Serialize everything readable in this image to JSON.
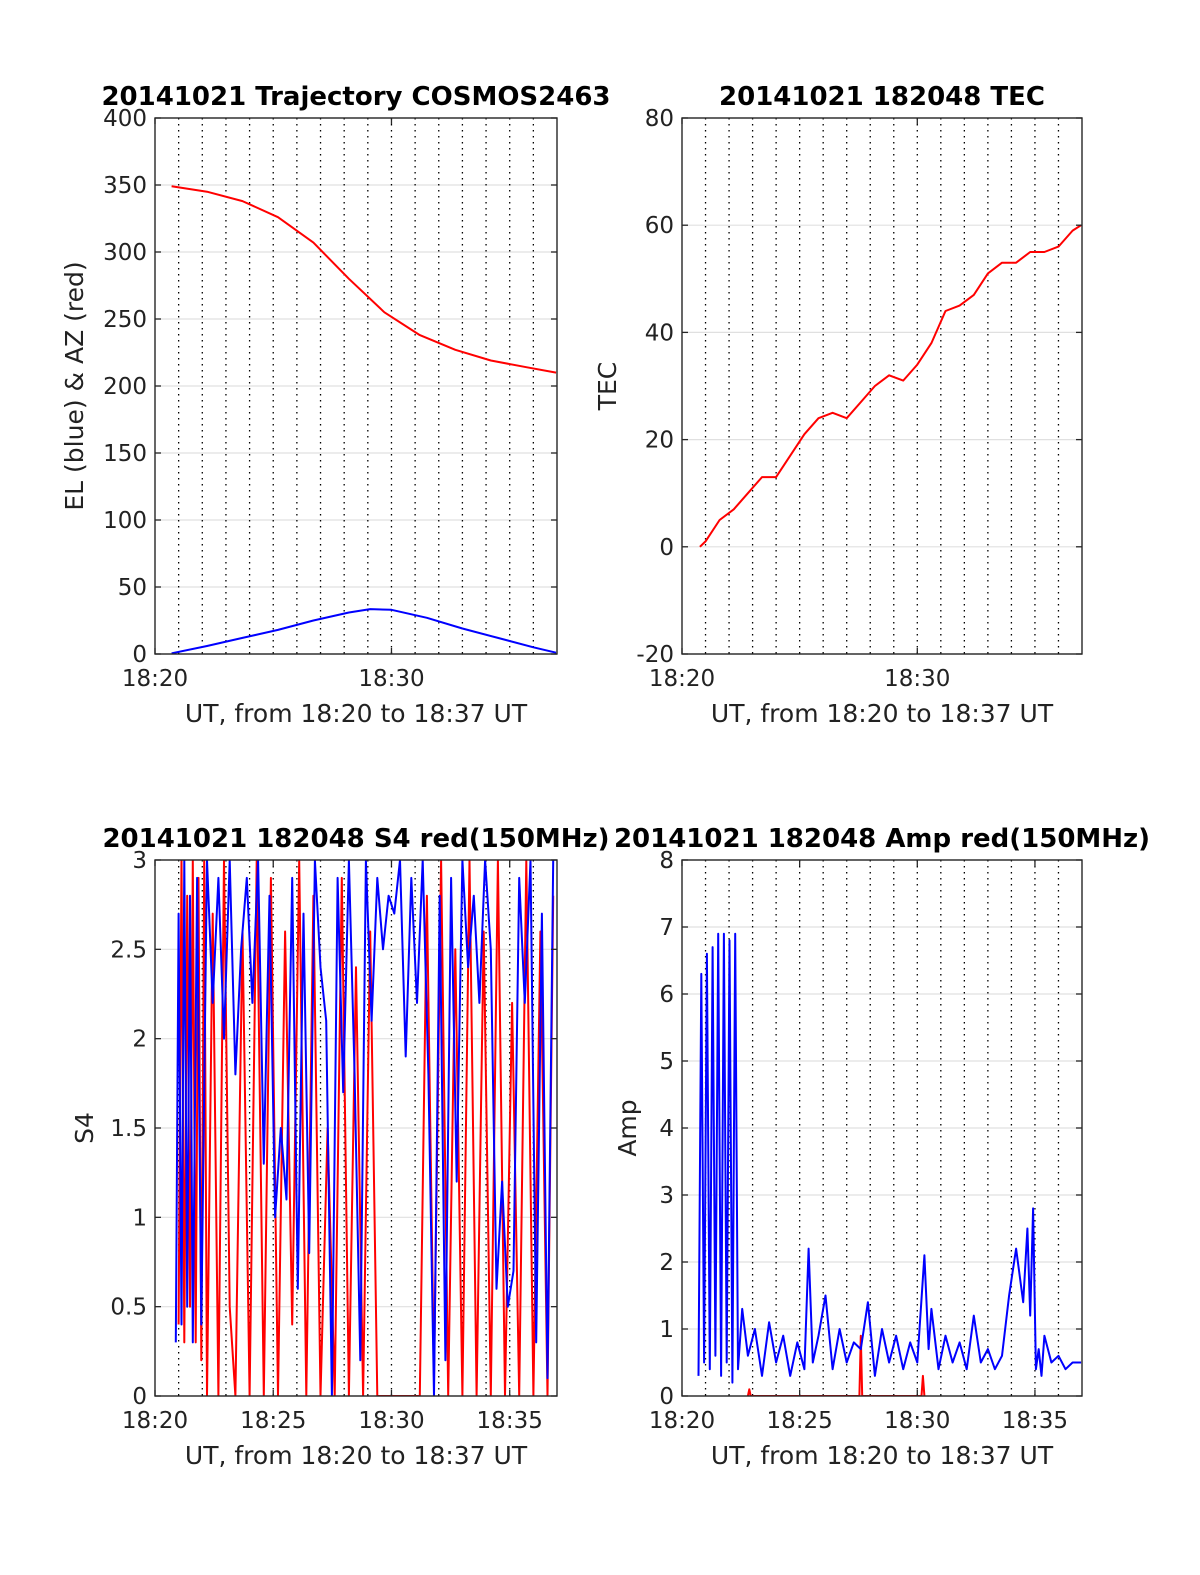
{
  "colors": {
    "el": "#0000ff",
    "az": "#ff0000",
    "tec": "#ff0000",
    "s4_red": "#ff0000",
    "s4_blue": "#0000ff",
    "amp_red": "#ff0000",
    "amp_blue": "#0000ff",
    "hgrid": "#e0e0e0",
    "vgrid": "#000000"
  },
  "chart_data": [
    {
      "type": "line",
      "title": "20141021 Trajectory COSMOS2463",
      "xlabel": "UT, from 18:20 to 18:37 UT",
      "ylabel": "EL (blue) & AZ (red)",
      "xlim": [
        18.333333,
        18.616667
      ],
      "ylim": [
        0,
        400
      ],
      "grid": true,
      "xticks": [
        {
          "value": 18.333333,
          "label": "18:20"
        },
        {
          "value": 18.5,
          "label": "18:30"
        }
      ],
      "yticks": [
        {
          "value": 0,
          "label": "0"
        },
        {
          "value": 50,
          "label": "50"
        },
        {
          "value": 100,
          "label": "100"
        },
        {
          "value": 150,
          "label": "150"
        },
        {
          "value": 200,
          "label": "200"
        },
        {
          "value": 250,
          "label": "250"
        },
        {
          "value": 300,
          "label": "300"
        },
        {
          "value": 350,
          "label": "350"
        },
        {
          "value": 400,
          "label": "400"
        }
      ],
      "series": [
        {
          "color": "#ff0000",
          "x": [
            18.345,
            18.37,
            18.395,
            18.42,
            18.445,
            18.47,
            18.495,
            18.52,
            18.545,
            18.57,
            18.595,
            18.616
          ],
          "values": [
            349,
            345,
            338,
            326,
            307,
            280,
            255,
            238,
            227,
            219,
            214,
            210
          ]
        },
        {
          "color": "#0000ff",
          "x": [
            18.345,
            18.37,
            18.395,
            18.42,
            18.445,
            18.47,
            18.485,
            18.5,
            18.525,
            18.55,
            18.575,
            18.6,
            18.616
          ],
          "values": [
            0.5,
            6,
            12,
            18,
            25,
            31,
            33.5,
            33,
            27,
            19,
            12,
            5,
            1
          ]
        }
      ]
    },
    {
      "type": "line",
      "title": "20141021 182048 TEC",
      "xlabel": "UT, from 18:20 to 18:37 UT",
      "ylabel": "TEC",
      "xlim": [
        18.333333,
        18.616667
      ],
      "ylim": [
        -20,
        80
      ],
      "grid": true,
      "xticks": [
        {
          "value": 18.333333,
          "label": "18:20"
        },
        {
          "value": 18.5,
          "label": "18:30"
        }
      ],
      "yticks": [
        {
          "value": -20,
          "label": "-20"
        },
        {
          "value": 0,
          "label": "0"
        },
        {
          "value": 20,
          "label": "20"
        },
        {
          "value": 40,
          "label": "40"
        },
        {
          "value": 60,
          "label": "60"
        },
        {
          "value": 80,
          "label": "80"
        }
      ],
      "series": [
        {
          "color": "#ff0000",
          "x": [
            18.346,
            18.35,
            18.36,
            18.37,
            18.38,
            18.39,
            18.4,
            18.41,
            18.42,
            18.43,
            18.44,
            18.45,
            18.46,
            18.47,
            18.48,
            18.49,
            18.5,
            18.51,
            18.52,
            18.53,
            18.54,
            18.55,
            18.56,
            18.57,
            18.58,
            18.59,
            18.6,
            18.61,
            18.616
          ],
          "values": [
            0,
            1,
            5,
            7,
            10,
            13,
            13,
            17,
            21,
            24,
            25,
            24,
            27,
            30,
            32,
            31,
            34,
            38,
            44,
            45,
            47,
            51,
            53,
            53,
            55,
            55,
            56,
            59,
            60
          ]
        }
      ]
    },
    {
      "type": "line",
      "title": "20141021 182048 S4 red(150MHz)",
      "xlabel": "UT, from 18:20 to 18:37 UT",
      "ylabel": "S4",
      "xlim": [
        18.333333,
        18.616667
      ],
      "ylim": [
        0,
        3
      ],
      "grid": true,
      "xticks": [
        {
          "value": 18.333333,
          "label": "18:20"
        },
        {
          "value": 18.416667,
          "label": "18:25"
        },
        {
          "value": 18.5,
          "label": "18:30"
        },
        {
          "value": 18.583333,
          "label": "18:35"
        }
      ],
      "yticks": [
        {
          "value": 0,
          "label": "0"
        },
        {
          "value": 0.5,
          "label": "0.5"
        },
        {
          "value": 1,
          "label": "1"
        },
        {
          "value": 1.5,
          "label": "1.5"
        },
        {
          "value": 2,
          "label": "2"
        },
        {
          "value": 2.5,
          "label": "2.5"
        },
        {
          "value": 3,
          "label": "3"
        }
      ],
      "series": [
        {
          "color": "#ff0000",
          "x": [
            18.35,
            18.352,
            18.354,
            18.356,
            18.358,
            18.36,
            18.362,
            18.364,
            18.366,
            18.368,
            18.37,
            18.374,
            18.378,
            18.382,
            18.386,
            18.39,
            18.395,
            18.4,
            18.405,
            18.41,
            18.415,
            18.42,
            18.425,
            18.43,
            18.435,
            18.44,
            18.445,
            18.45,
            18.455,
            18.46,
            18.465,
            18.47,
            18.475,
            18.48,
            18.485,
            18.49,
            18.495,
            18.5,
            18.505,
            18.51,
            18.515,
            18.52,
            18.525,
            18.53,
            18.535,
            18.54,
            18.545,
            18.55,
            18.555,
            18.56,
            18.565,
            18.57,
            18.575,
            18.58,
            18.585,
            18.59,
            18.595,
            18.6,
            18.605,
            18.61,
            18.614
          ],
          "values": [
            0.4,
            3,
            0.3,
            2.8,
            0.5,
            3,
            0.3,
            2.9,
            0.2,
            3,
            0,
            2.7,
            0,
            3,
            0.5,
            0,
            2.6,
            0,
            3,
            0,
            2.9,
            0,
            2.6,
            0.4,
            3,
            0,
            2.8,
            0,
            1.5,
            0,
            2.9,
            0,
            2.4,
            0,
            2.6,
            0,
            0,
            0,
            0,
            0,
            0,
            0,
            2.8,
            0.1,
            3,
            0,
            2.5,
            0,
            3,
            0,
            2.6,
            0,
            3,
            0,
            2.2,
            0,
            3,
            0,
            2.6,
            0,
            2.8
          ]
        },
        {
          "color": "#0000ff",
          "x": [
            18.348,
            18.35,
            18.352,
            18.354,
            18.356,
            18.358,
            18.36,
            18.363,
            18.366,
            18.37,
            18.374,
            18.378,
            18.382,
            18.386,
            18.39,
            18.394,
            18.398,
            18.402,
            18.406,
            18.41,
            18.414,
            18.418,
            18.422,
            18.426,
            18.43,
            18.434,
            18.438,
            18.442,
            18.446,
            18.45,
            18.454,
            18.458,
            18.462,
            18.466,
            18.47,
            18.474,
            18.478,
            18.482,
            18.486,
            18.49,
            18.494,
            18.498,
            18.502,
            18.506,
            18.51,
            18.514,
            18.518,
            18.522,
            18.526,
            18.53,
            18.534,
            18.538,
            18.542,
            18.546,
            18.55,
            18.554,
            18.558,
            18.562,
            18.566,
            18.57,
            18.574,
            18.578,
            18.582,
            18.586,
            18.59,
            18.594,
            18.598,
            18.602,
            18.606,
            18.61,
            18.614
          ],
          "values": [
            0.3,
            2.7,
            0.4,
            3,
            0.5,
            2.8,
            0.3,
            2.9,
            0.4,
            3,
            2.2,
            2.9,
            2.0,
            3,
            1.8,
            2.5,
            2.9,
            2.2,
            3,
            1.3,
            2.8,
            1.0,
            1.5,
            1.1,
            2.9,
            0.6,
            2.7,
            0.8,
            3,
            2.4,
            2.1,
            0,
            2.9,
            1.7,
            3,
            1.8,
            0.2,
            3,
            2.1,
            2.9,
            2.5,
            2.8,
            2.7,
            3,
            1.9,
            2.9,
            2.2,
            3,
            1.8,
            0,
            2.8,
            0.2,
            2.9,
            1.2,
            3,
            2.4,
            2.8,
            2.2,
            3,
            2.5,
            0.6,
            1.2,
            0.5,
            0.7,
            2.9,
            2.2,
            3,
            0.3,
            2.7,
            0.1,
            3
          ]
        }
      ]
    },
    {
      "type": "line",
      "title": "20141021 182048 Amp red(150MHz)",
      "xlabel": "UT, from 18:20 to 18:37 UT",
      "ylabel": "Amp",
      "xlim": [
        18.333333,
        18.616667
      ],
      "ylim": [
        0,
        8
      ],
      "grid": true,
      "xticks": [
        {
          "value": 18.333333,
          "label": "18:20"
        },
        {
          "value": 18.416667,
          "label": "18:25"
        },
        {
          "value": 18.5,
          "label": "18:30"
        },
        {
          "value": 18.583333,
          "label": "18:35"
        }
      ],
      "yticks": [
        {
          "value": 0,
          "label": "0"
        },
        {
          "value": 1,
          "label": "1"
        },
        {
          "value": 2,
          "label": "2"
        },
        {
          "value": 3,
          "label": "3"
        },
        {
          "value": 4,
          "label": "4"
        },
        {
          "value": 5,
          "label": "5"
        },
        {
          "value": 6,
          "label": "6"
        },
        {
          "value": 7,
          "label": "7"
        },
        {
          "value": 8,
          "label": "8"
        }
      ],
      "series": [
        {
          "color": "#ff0000",
          "x": [
            18.38,
            18.381,
            18.382,
            18.459,
            18.46,
            18.461,
            18.503,
            18.504,
            18.505
          ],
          "values": [
            0,
            0.1,
            0,
            0,
            0.9,
            0,
            0,
            0.3,
            0
          ]
        },
        {
          "color": "#0000ff",
          "x": [
            18.345,
            18.347,
            18.349,
            18.351,
            18.353,
            18.355,
            18.357,
            18.359,
            18.361,
            18.363,
            18.365,
            18.367,
            18.369,
            18.371,
            18.373,
            18.376,
            18.38,
            18.385,
            18.39,
            18.395,
            18.4,
            18.405,
            18.41,
            18.415,
            18.42,
            18.423,
            18.426,
            18.43,
            18.435,
            18.44,
            18.445,
            18.45,
            18.455,
            18.46,
            18.465,
            18.47,
            18.475,
            18.48,
            18.485,
            18.49,
            18.495,
            18.5,
            18.505,
            18.508,
            18.51,
            18.515,
            18.52,
            18.525,
            18.53,
            18.535,
            18.54,
            18.545,
            18.55,
            18.555,
            18.56,
            18.565,
            18.57,
            18.575,
            18.578,
            18.58,
            18.582,
            18.584,
            18.586,
            18.588,
            18.59,
            18.595,
            18.6,
            18.605,
            18.61,
            18.616
          ],
          "values": [
            0.3,
            6.3,
            0.5,
            6.6,
            0.4,
            6.7,
            0.6,
            6.9,
            0.3,
            6.9,
            0.5,
            6.8,
            0.2,
            6.9,
            0.4,
            1.3,
            0.6,
            1.0,
            0.3,
            1.1,
            0.5,
            0.9,
            0.3,
            0.8,
            0.4,
            2.2,
            0.5,
            0.9,
            1.5,
            0.4,
            1.0,
            0.5,
            0.8,
            0.7,
            1.4,
            0.3,
            1.0,
            0.5,
            0.9,
            0.4,
            0.8,
            0.5,
            2.1,
            0.7,
            1.3,
            0.4,
            0.9,
            0.5,
            0.8,
            0.4,
            1.2,
            0.5,
            0.7,
            0.4,
            0.6,
            1.5,
            2.2,
            1.4,
            2.5,
            1.2,
            2.8,
            0.4,
            0.7,
            0.3,
            0.9,
            0.5,
            0.6,
            0.4,
            0.5,
            0.5
          ]
        }
      ]
    }
  ]
}
